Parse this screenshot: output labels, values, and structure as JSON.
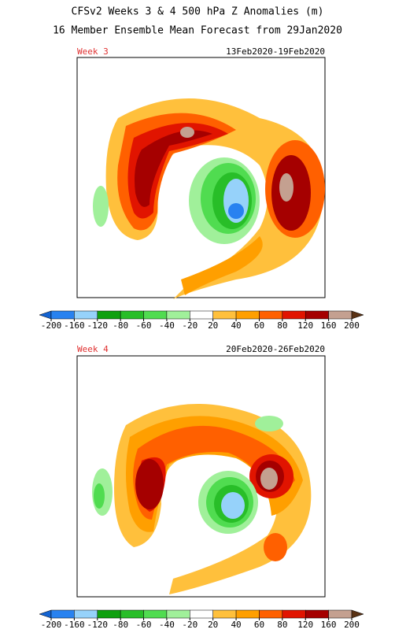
{
  "header": {
    "line1": "CFSv2 Weeks 3 & 4 500 hPa Z Anomalies (m)",
    "line2": "16 Member Ensemble Mean Forecast from 29Jan2020"
  },
  "panels": [
    {
      "label": "Week 3",
      "dates": "13Feb2020-19Feb2020"
    },
    {
      "label": "Week 4",
      "dates": "20Feb2020-26Feb2020"
    }
  ],
  "colorbar": {
    "ticks": [
      -200,
      -160,
      -120,
      -80,
      -60,
      -40,
      -20,
      20,
      40,
      60,
      80,
      120,
      160,
      200
    ],
    "colors": [
      "#1464d2",
      "#2882f0",
      "#96d2fa",
      "#0fa00f",
      "#28be28",
      "#50dc50",
      "#a0f09a",
      "#ffffff",
      "#ffc03c",
      "#ff9f00",
      "#ff6000",
      "#e11400",
      "#a50000",
      "#c4a090",
      "#8c6450",
      "#5a3214"
    ]
  }
}
